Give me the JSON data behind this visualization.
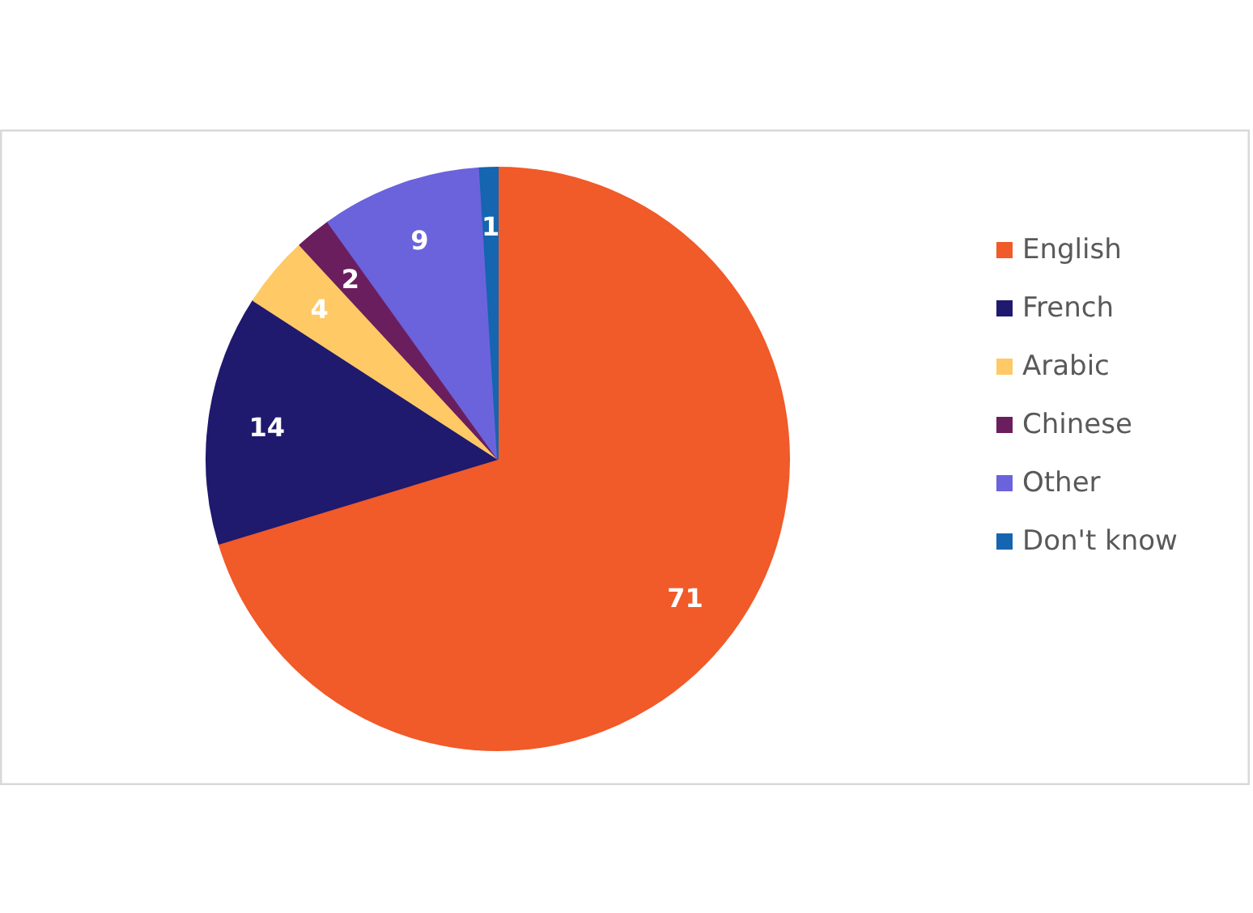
{
  "chart_data": {
    "type": "pie",
    "categories": [
      "English",
      "French",
      "Arabic",
      "Chinese",
      "Other",
      "Don't know"
    ],
    "values": [
      71,
      14,
      4,
      2,
      9,
      1
    ],
    "colors": [
      "#f15a29",
      "#1f1a6e",
      "#ffc966",
      "#6b1e5e",
      "#6b63dc",
      "#1565b0"
    ],
    "data_labels": true,
    "legend": "right"
  }
}
